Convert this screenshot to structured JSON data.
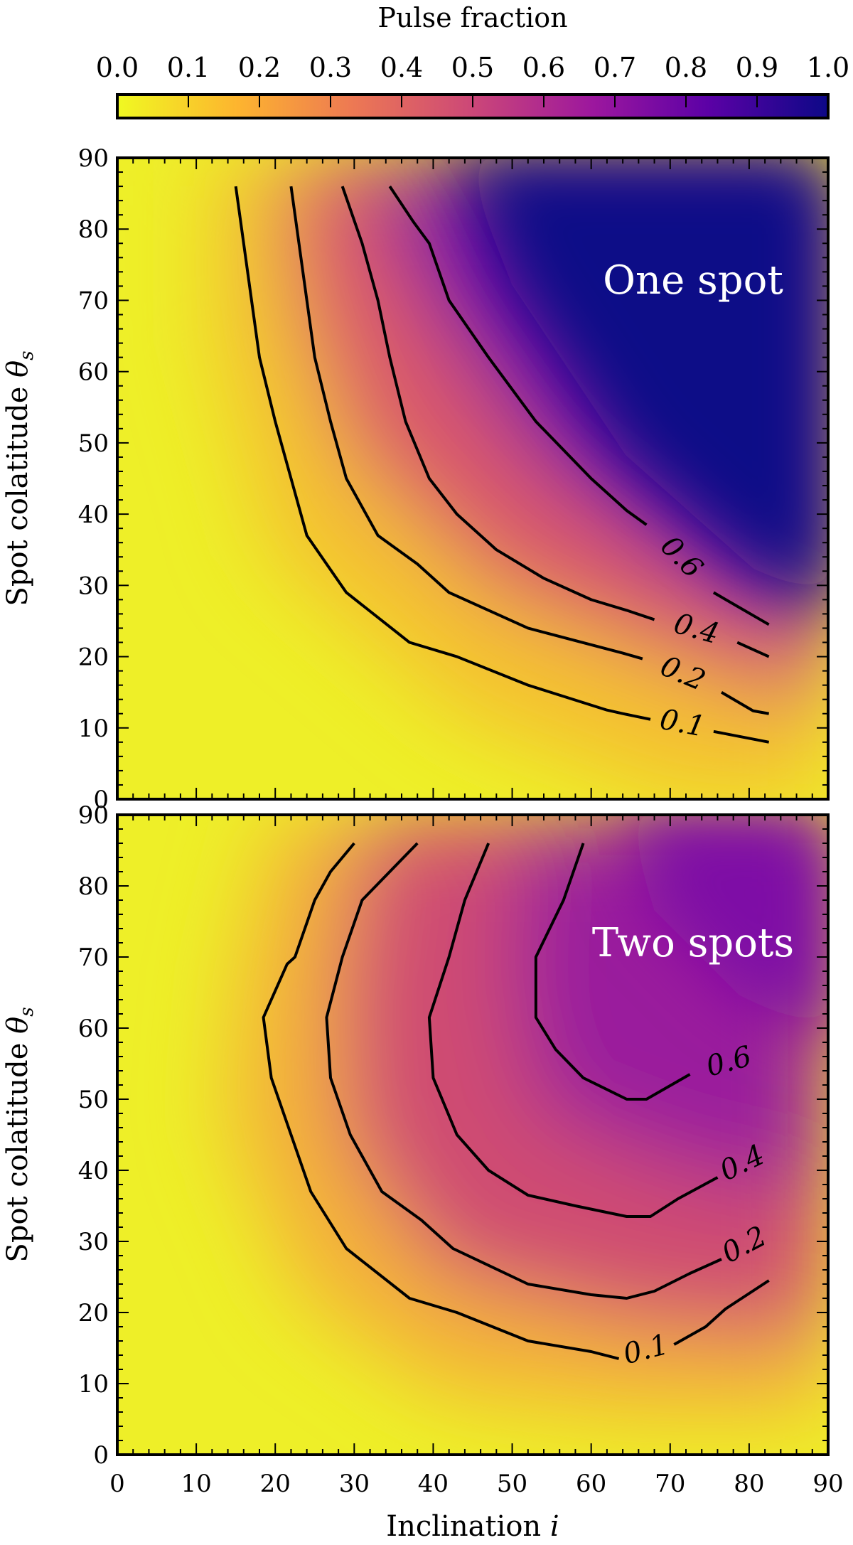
{
  "colorbar": {
    "label": "Pulse fraction",
    "ticks": [
      "0.0",
      "0.1",
      "0.2",
      "0.3",
      "0.4",
      "0.5",
      "0.6",
      "0.7",
      "0.8",
      "0.9",
      "1.0"
    ],
    "colormap": [
      "#f0f921",
      "#fdb42f",
      "#ed7953",
      "#cc4778",
      "#9c179e",
      "#5c01a6",
      "#0d0887"
    ]
  },
  "x_axis": {
    "label": "Inclination i",
    "ticks": [
      "0",
      "10",
      "20",
      "30",
      "40",
      "50",
      "60",
      "70",
      "80",
      "90"
    ]
  },
  "y_axis": {
    "label": "Spot colatitude θs",
    "ticks": [
      "0",
      "10",
      "20",
      "30",
      "40",
      "50",
      "60",
      "70",
      "80",
      "90"
    ]
  },
  "chart_data": [
    {
      "type": "heatmap",
      "title": "One spot",
      "xlabel": "Inclination i",
      "ylabel": "Spot colatitude θs",
      "xlim": [
        0,
        90
      ],
      "ylim": [
        0,
        90
      ],
      "colorbar_range": [
        0,
        1
      ],
      "contours": [
        {
          "level": "0.1",
          "points": [
            [
              15,
              86
            ],
            [
              16,
              78
            ],
            [
              17,
              70
            ],
            [
              18,
              62
            ],
            [
              20,
              53
            ],
            [
              22,
              45
            ],
            [
              24,
              37
            ],
            [
              29,
              29
            ],
            [
              37,
              22
            ],
            [
              43,
              20
            ],
            [
              52,
              16
            ],
            [
              62,
              12.5
            ],
            [
              64,
              12
            ],
            [
              67.5,
              11.2
            ],
            [
              75.5,
              9.5
            ],
            [
              82.5,
              8
            ]
          ]
        },
        {
          "level": "0.2",
          "points": [
            [
              22,
              86
            ],
            [
              23,
              78
            ],
            [
              24,
              70
            ],
            [
              25,
              62
            ],
            [
              27,
              53
            ],
            [
              29,
              45
            ],
            [
              33,
              37
            ],
            [
              38,
              33
            ],
            [
              42,
              29
            ],
            [
              52,
              24
            ],
            [
              64,
              20.5
            ],
            [
              66.5,
              19.7
            ],
            [
              76.5,
              15
            ],
            [
              80.5,
              12.4
            ],
            [
              82.5,
              12
            ]
          ]
        },
        {
          "level": "0.4",
          "points": [
            [
              28.5,
              86
            ],
            [
              31,
              78
            ],
            [
              33,
              70
            ],
            [
              34.5,
              62
            ],
            [
              36.5,
              53
            ],
            [
              39.5,
              45
            ],
            [
              43,
              40
            ],
            [
              48,
              35
            ],
            [
              54,
              31
            ],
            [
              60,
              28
            ],
            [
              64.5,
              26.5
            ],
            [
              68,
              25.2
            ],
            [
              78.5,
              22
            ],
            [
              82.5,
              20
            ]
          ]
        },
        {
          "level": "0.6",
          "points": [
            [
              34.5,
              86
            ],
            [
              37.5,
              81
            ],
            [
              39.5,
              78
            ],
            [
              42,
              70
            ],
            [
              47,
              62
            ],
            [
              53,
              53
            ],
            [
              60,
              45
            ],
            [
              64.5,
              40.5
            ],
            [
              67,
              38.5
            ],
            [
              75.5,
              29
            ],
            [
              82.5,
              24.5
            ]
          ]
        }
      ]
    },
    {
      "type": "heatmap",
      "title": "Two spots",
      "xlabel": "Inclination i",
      "ylabel": "Spot colatitude θs",
      "xlim": [
        0,
        90
      ],
      "ylim": [
        0,
        90
      ],
      "colorbar_range": [
        0,
        1
      ],
      "contours": [
        {
          "level": "0.1",
          "points": [
            [
              30,
              86
            ],
            [
              27,
              82
            ],
            [
              25,
              78
            ],
            [
              22.5,
              70
            ],
            [
              21.5,
              69
            ],
            [
              18.5,
              61.5
            ],
            [
              19.5,
              53
            ],
            [
              22,
              45
            ],
            [
              24.5,
              37
            ],
            [
              29,
              29
            ],
            [
              37,
              22
            ],
            [
              43,
              20
            ],
            [
              52,
              16
            ],
            [
              60,
              14.5
            ],
            [
              63.5,
              13.5
            ],
            [
              70.5,
              15.5
            ],
            [
              74.5,
              18
            ],
            [
              77,
              20.5
            ],
            [
              82.5,
              24.5
            ]
          ]
        },
        {
          "level": "0.2",
          "points": [
            [
              38,
              86
            ],
            [
              34.5,
              82
            ],
            [
              31,
              78
            ],
            [
              28.5,
              70
            ],
            [
              26.5,
              61.5
            ],
            [
              27,
              53
            ],
            [
              29.5,
              45
            ],
            [
              33.5,
              37
            ],
            [
              38.5,
              33
            ],
            [
              42.5,
              29
            ],
            [
              52,
              24
            ],
            [
              60,
              22.5
            ],
            [
              64.5,
              22
            ],
            [
              68,
              23
            ],
            [
              72.5,
              25.5
            ],
            [
              76.5,
              27.5
            ],
            [
              82.5,
              31
            ]
          ]
        },
        {
          "level": "0.4",
          "points": [
            [
              47,
              86
            ],
            [
              44,
              78
            ],
            [
              42,
              70
            ],
            [
              39.5,
              61.5
            ],
            [
              40,
              53
            ],
            [
              43,
              45
            ],
            [
              47,
              40
            ],
            [
              52,
              36.5
            ],
            [
              58,
              35
            ],
            [
              64.5,
              33.5
            ],
            [
              67.5,
              33.5
            ],
            [
              71,
              36
            ],
            [
              76,
              39
            ],
            [
              82.5,
              42.5
            ]
          ]
        },
        {
          "level": "0.6",
          "points": [
            [
              59,
              86
            ],
            [
              56.5,
              78
            ],
            [
              53,
              70
            ],
            [
              53,
              61.5
            ],
            [
              55.5,
              57
            ],
            [
              59,
              53
            ],
            [
              64.5,
              50
            ],
            [
              67,
              50
            ],
            [
              72.5,
              53.5
            ],
            [
              82.5,
              56.5
            ]
          ]
        }
      ]
    }
  ]
}
